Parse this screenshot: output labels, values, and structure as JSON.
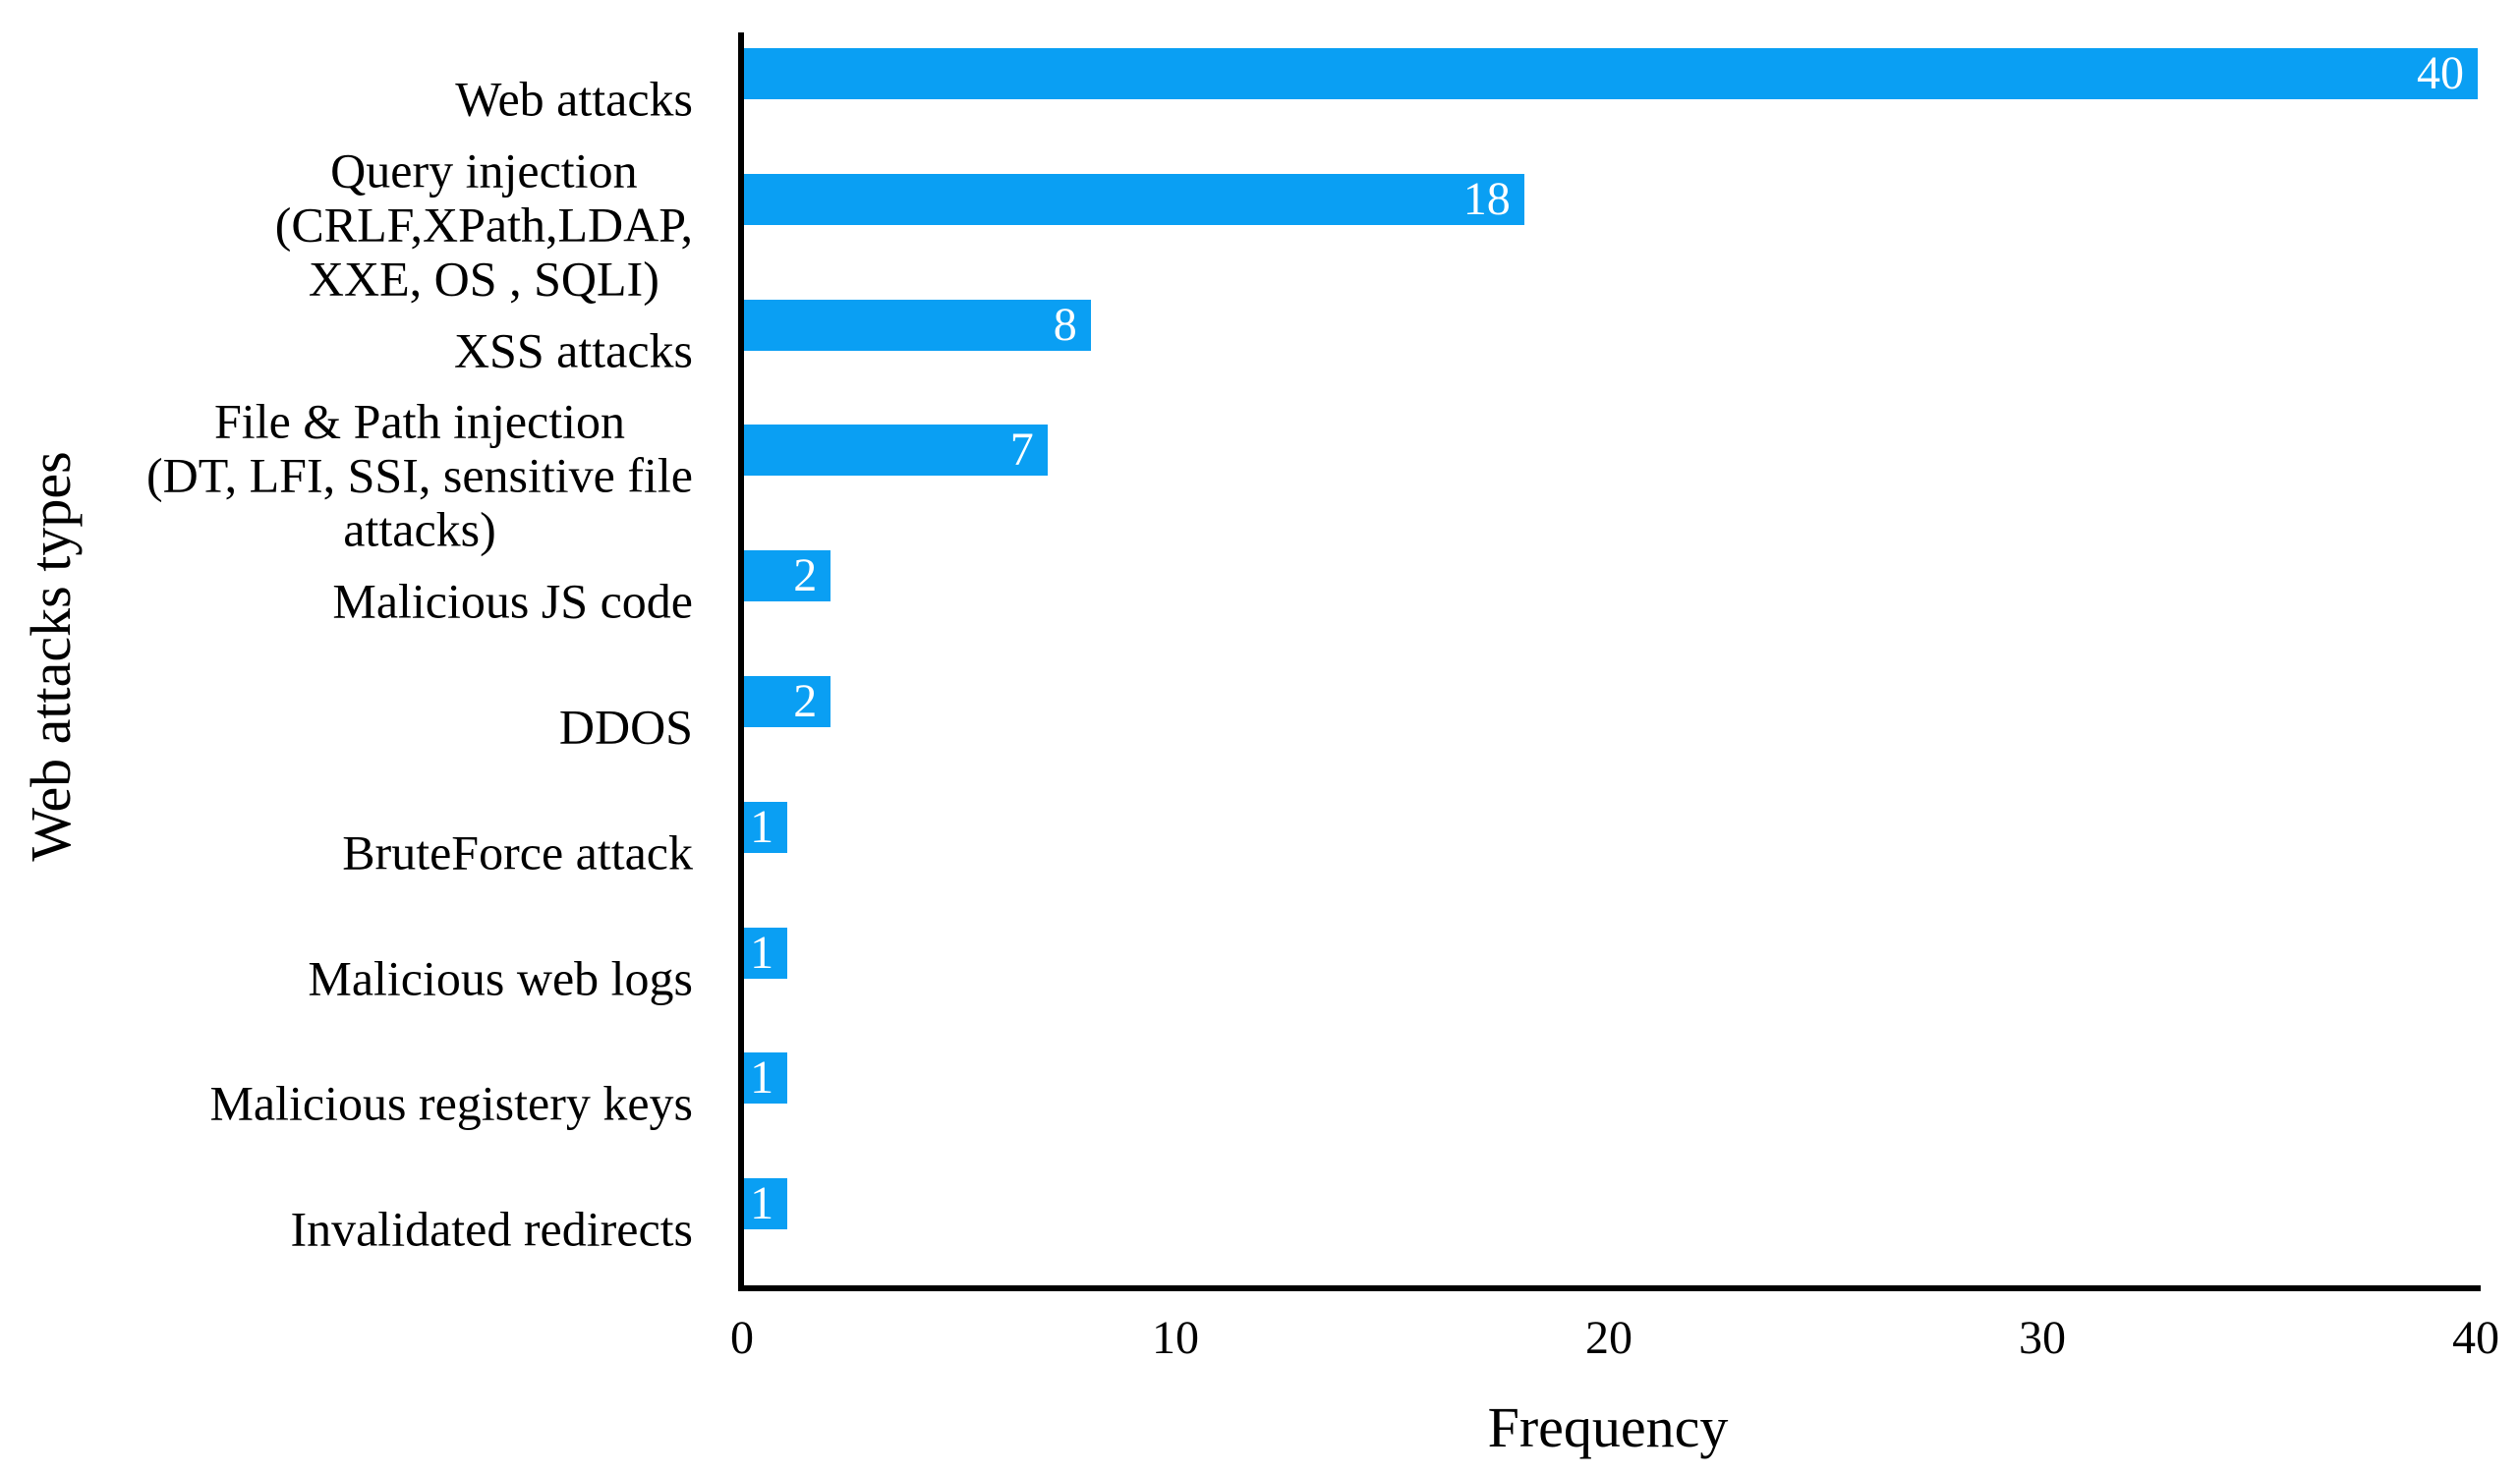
{
  "chart_data": {
    "type": "bar",
    "orientation": "horizontal",
    "xlabel": "Frequency",
    "ylabel": "Web attacks types",
    "xlim": [
      0,
      40
    ],
    "xticks": [
      "0",
      "10",
      "20",
      "30",
      "40"
    ],
    "grid": false,
    "colors": {
      "bar": "#0a9ff3",
      "value_label": "#ffffff",
      "axis": "#000000",
      "text": "#000000",
      "background": "#ffffff"
    },
    "categories": [
      "Web attacks",
      "Query injection (CRLF,XPath,LDAP, XXE, OS , SQLI)",
      "XSS attacks",
      "File & Path injection (DT, LFI, SSI, sensitive file attacks)",
      "Malicious JS code",
      "DDOS",
      "BruteForce attack",
      "Malicious web logs",
      "Malicious registery keys",
      "Invalidated redirects"
    ],
    "category_display_lines": [
      [
        "Web attacks"
      ],
      [
        "Query injection",
        "(CRLF,XPath,LDAP,",
        "XXE, OS , SQLI)"
      ],
      [
        "XSS attacks"
      ],
      [
        "File & Path injection",
        "(DT, LFI, SSI, sensitive file",
        "attacks)"
      ],
      [
        "Malicious JS code"
      ],
      [
        "DDOS"
      ],
      [
        "BruteForce attack"
      ],
      [
        "Malicious web logs"
      ],
      [
        "Malicious registery keys"
      ],
      [
        "Invalidated redirects"
      ]
    ],
    "values": [
      40,
      18,
      8,
      7,
      2,
      2,
      1,
      1,
      1,
      1
    ]
  }
}
